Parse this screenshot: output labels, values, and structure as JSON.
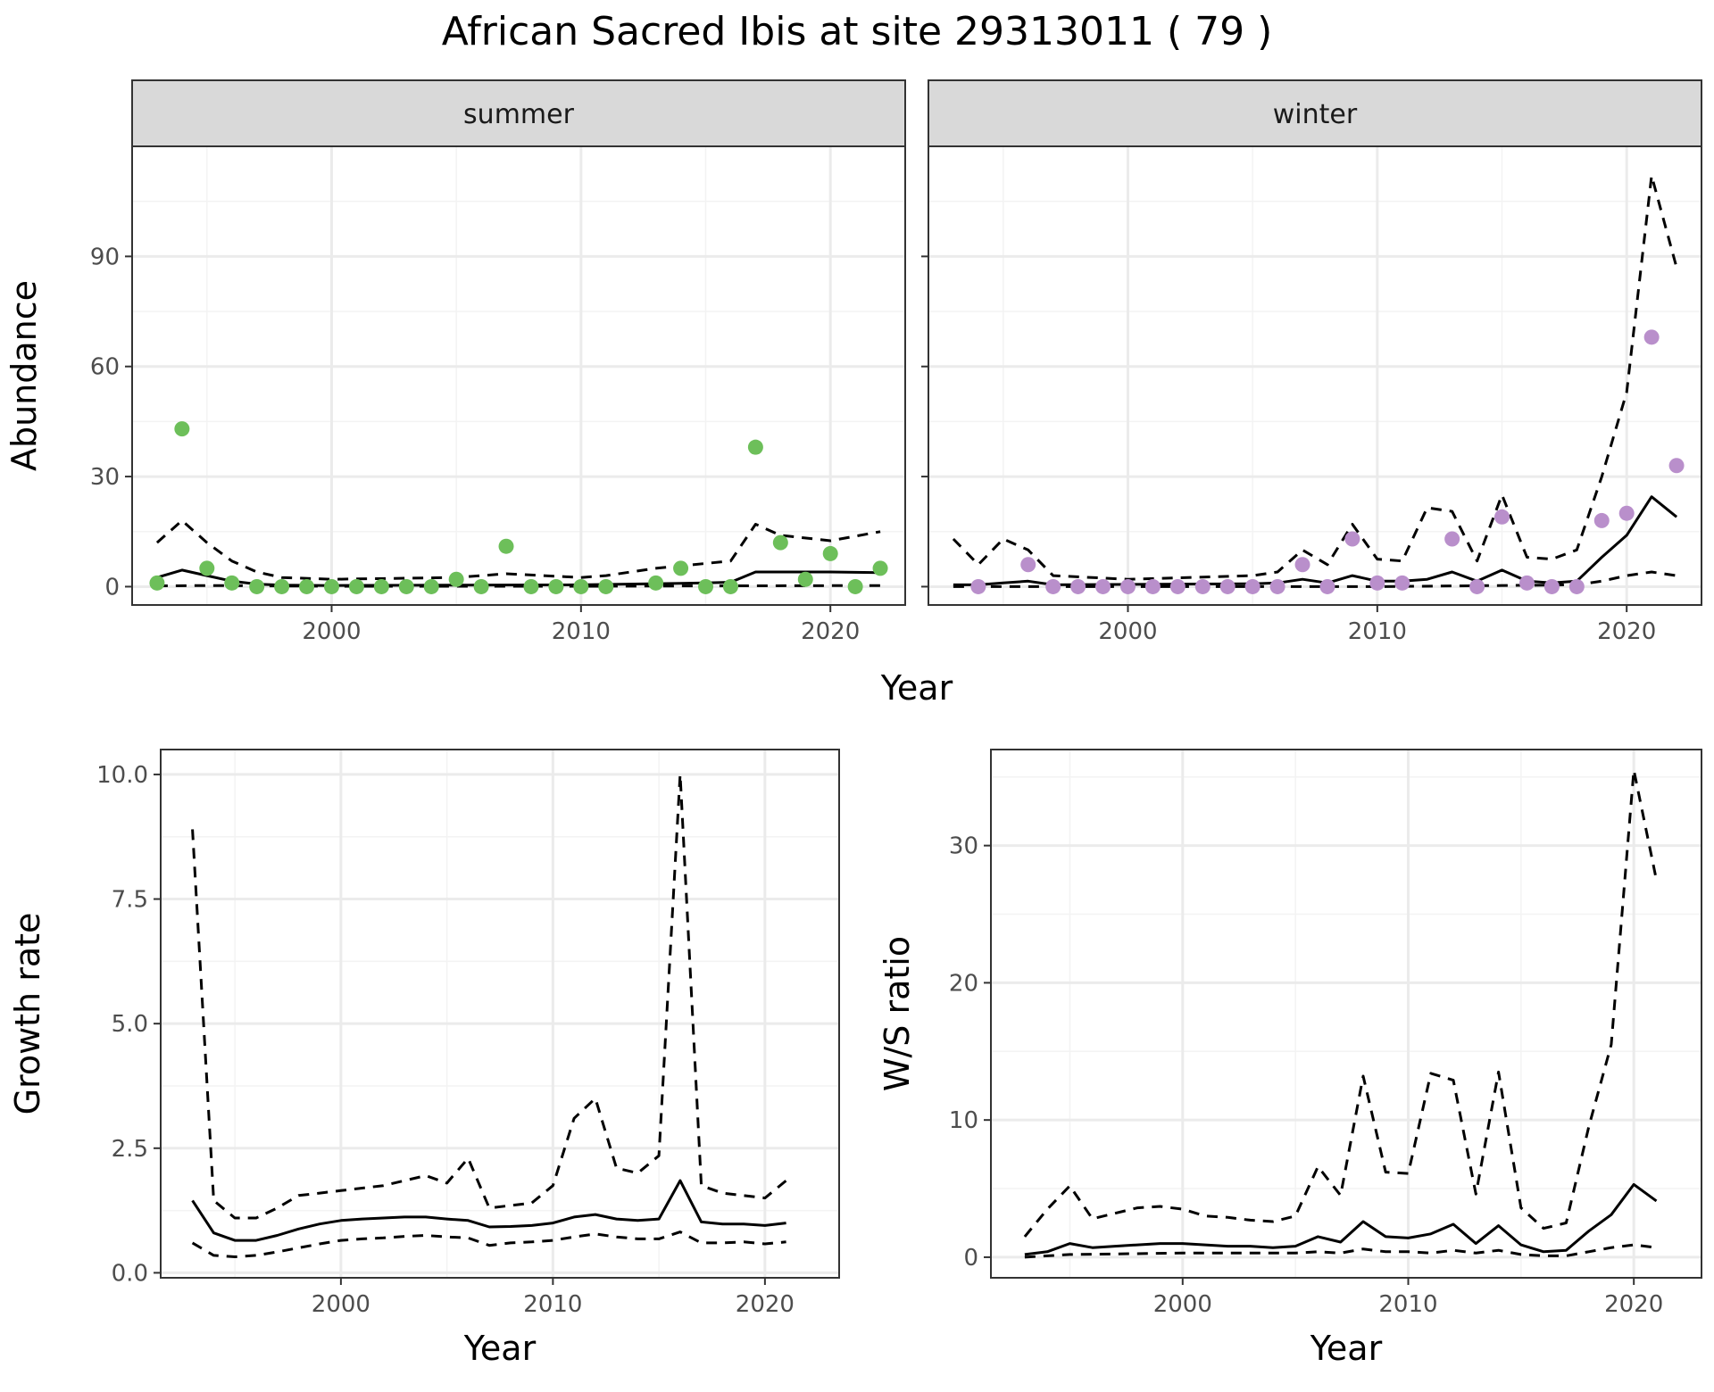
{
  "title": "African Sacred Ibis at site 29313011 ( 79 )",
  "colors": {
    "summer_points": "#6dbf5a",
    "winter_points": "#b98fcb",
    "lines": "#000000",
    "strip_fill": "#d9d9d9",
    "grid": "#ebebeb"
  },
  "chart_data": [
    {
      "type": "scatter",
      "id": "abundance-summer",
      "facet": "summer",
      "xlabel": "Year",
      "ylabel": "Abundance",
      "xlim": [
        1992,
        2023
      ],
      "ylim": [
        -5,
        120
      ],
      "xticks": [
        2000,
        2010,
        2020
      ],
      "yticks": [
        0,
        30,
        60,
        90
      ],
      "points": {
        "x": [
          1993,
          1994,
          1995,
          1996,
          1997,
          1998,
          1999,
          2000,
          2001,
          2002,
          2003,
          2004,
          2005,
          2006,
          2007,
          2008,
          2009,
          2010,
          2011,
          2013,
          2014,
          2015,
          2016,
          2017,
          2018,
          2019,
          2020,
          2021,
          2022
        ],
        "y": [
          1,
          43,
          5,
          1,
          0,
          0,
          0,
          0,
          0,
          0,
          0,
          0,
          2,
          0,
          11,
          0,
          0,
          0,
          0,
          1,
          5,
          0,
          0,
          38,
          12,
          2,
          9,
          0,
          5
        ]
      },
      "series": [
        {
          "name": "median",
          "style": "solid",
          "x": [
            1993,
            1994,
            1995,
            1996,
            1997,
            1998,
            2000,
            2005,
            2010,
            2015,
            2016,
            2017,
            2018,
            2020,
            2022
          ],
          "y": [
            2.5,
            4.5,
            3,
            1.5,
            0.7,
            0.4,
            0.3,
            0.4,
            0.5,
            1,
            1.2,
            4,
            4,
            4,
            3.8
          ]
        },
        {
          "name": "upper",
          "style": "dashed",
          "x": [
            1993,
            1994,
            1995,
            1996,
            1997,
            1998,
            2000,
            2005,
            2007,
            2010,
            2011,
            2013,
            2016,
            2017,
            2018,
            2020,
            2022
          ],
          "y": [
            12,
            18,
            12,
            7,
            4,
            2.5,
            2,
            2.5,
            3.5,
            2.5,
            3,
            5,
            7,
            17,
            14,
            12.5,
            15
          ]
        },
        {
          "name": "lower",
          "style": "dashed",
          "x": [
            1993,
            1995,
            2000,
            2010,
            2015,
            2022
          ],
          "y": [
            0.2,
            0.3,
            0.1,
            0.1,
            0.2,
            0.3
          ]
        }
      ]
    },
    {
      "type": "scatter",
      "id": "abundance-winter",
      "facet": "winter",
      "xlabel": "Year",
      "ylabel": "Abundance",
      "xlim": [
        1992,
        2023
      ],
      "ylim": [
        -5,
        120
      ],
      "xticks": [
        2000,
        2010,
        2020
      ],
      "yticks": [
        0,
        30,
        60,
        90
      ],
      "points": {
        "x": [
          1994,
          1996,
          1997,
          1998,
          1999,
          2000,
          2001,
          2002,
          2003,
          2004,
          2005,
          2006,
          2007,
          2008,
          2009,
          2010,
          2011,
          2013,
          2014,
          2015,
          2016,
          2017,
          2018,
          2019,
          2020,
          2021,
          2022
        ],
        "y": [
          0,
          6,
          0,
          0,
          0,
          0,
          0,
          0,
          0,
          0,
          0,
          0,
          6,
          0,
          13,
          1,
          1,
          13,
          0,
          19,
          1,
          0,
          0,
          18,
          20,
          68,
          33
        ]
      },
      "series": [
        {
          "name": "median",
          "style": "solid",
          "x": [
            1993,
            1994,
            1995,
            1996,
            1997,
            2005,
            2006,
            2007,
            2008,
            2009,
            2010,
            2011,
            2012,
            2013,
            2014,
            2015,
            2016,
            2017,
            2018,
            2019,
            2020,
            2021,
            2022
          ],
          "y": [
            0.5,
            0.5,
            1,
            1.5,
            0.5,
            0.8,
            1,
            2,
            1,
            3,
            1.5,
            1.5,
            2,
            4,
            1.5,
            4.5,
            1.5,
            1,
            1.5,
            8,
            14,
            24.5,
            19
          ]
        },
        {
          "name": "upper",
          "style": "dashed",
          "x": [
            1993,
            1994,
            1995,
            1996,
            1997,
            2000,
            2005,
            2006,
            2007,
            2008,
            2009,
            2010,
            2011,
            2012,
            2013,
            2014,
            2015,
            2016,
            2017,
            2018,
            2019,
            2020,
            2021,
            2022
          ],
          "y": [
            13,
            6,
            13,
            10,
            3,
            2,
            3,
            4,
            10,
            6,
            17,
            7.5,
            7,
            21.5,
            20.5,
            7,
            25,
            8,
            7.5,
            10,
            30,
            53,
            112,
            87
          ]
        },
        {
          "name": "lower",
          "style": "dashed",
          "x": [
            1993,
            2000,
            2010,
            2018,
            2019,
            2020,
            2021,
            2022
          ],
          "y": [
            0,
            0,
            0,
            0.5,
            1.5,
            3,
            4,
            3
          ]
        }
      ]
    },
    {
      "type": "line",
      "id": "growth-rate",
      "xlabel": "Year",
      "ylabel": "Growth rate",
      "xlim": [
        1991.5,
        2023.5
      ],
      "ylim": [
        -0.1,
        10.5
      ],
      "xticks": [
        2000,
        2010,
        2020
      ],
      "yticks": [
        0.0,
        2.5,
        5.0,
        7.5,
        10.0
      ],
      "ytick_labels": [
        "0.0",
        "2.5",
        "5.0",
        "7.5",
        "10.0"
      ],
      "series": [
        {
          "name": "median",
          "style": "solid",
          "x": [
            1993,
            1994,
            1995,
            1996,
            1997,
            1998,
            1999,
            2000,
            2001,
            2002,
            2003,
            2004,
            2005,
            2006,
            2007,
            2008,
            2009,
            2010,
            2011,
            2012,
            2013,
            2014,
            2015,
            2016,
            2017,
            2018,
            2019,
            2020,
            2021
          ],
          "y": [
            1.45,
            0.8,
            0.65,
            0.65,
            0.75,
            0.88,
            0.98,
            1.05,
            1.08,
            1.1,
            1.12,
            1.12,
            1.08,
            1.05,
            0.92,
            0.93,
            0.95,
            1.0,
            1.12,
            1.17,
            1.08,
            1.05,
            1.08,
            1.85,
            1.02,
            0.98,
            0.98,
            0.95,
            1.0
          ]
        },
        {
          "name": "upper",
          "style": "dashed",
          "x": [
            1993,
            1994,
            1995,
            1996,
            1997,
            1998,
            1999,
            2000,
            2001,
            2002,
            2003,
            2004,
            2005,
            2006,
            2007,
            2008,
            2009,
            2010,
            2011,
            2012,
            2013,
            2014,
            2015,
            2016,
            2017,
            2018,
            2019,
            2020,
            2021
          ],
          "y": [
            8.9,
            1.45,
            1.1,
            1.1,
            1.3,
            1.55,
            1.6,
            1.65,
            1.7,
            1.75,
            1.85,
            1.95,
            1.8,
            2.3,
            1.3,
            1.35,
            1.4,
            1.75,
            3.1,
            3.5,
            2.1,
            2.0,
            2.35,
            10.0,
            1.75,
            1.6,
            1.55,
            1.5,
            1.85
          ]
        },
        {
          "name": "lower",
          "style": "dashed",
          "x": [
            1993,
            1994,
            1995,
            1996,
            1997,
            1998,
            1999,
            2000,
            2001,
            2002,
            2003,
            2004,
            2005,
            2006,
            2007,
            2008,
            2009,
            2010,
            2011,
            2012,
            2013,
            2014,
            2015,
            2016,
            2017,
            2018,
            2019,
            2020,
            2021
          ],
          "y": [
            0.6,
            0.35,
            0.32,
            0.35,
            0.42,
            0.5,
            0.58,
            0.65,
            0.68,
            0.7,
            0.73,
            0.75,
            0.72,
            0.7,
            0.55,
            0.6,
            0.62,
            0.65,
            0.72,
            0.78,
            0.72,
            0.68,
            0.68,
            0.82,
            0.6,
            0.6,
            0.62,
            0.58,
            0.62
          ]
        }
      ]
    },
    {
      "type": "line",
      "id": "ws-ratio",
      "xlabel": "Year",
      "ylabel": "W/S ratio",
      "xlim": [
        1991.5,
        2023
      ],
      "ylim": [
        -1.5,
        37
      ],
      "xticks": [
        2000,
        2010,
        2020
      ],
      "yticks": [
        0,
        10,
        20,
        30
      ],
      "series": [
        {
          "name": "median",
          "style": "solid",
          "x": [
            1993,
            1994,
            1995,
            1996,
            1997,
            1998,
            1999,
            2000,
            2001,
            2002,
            2003,
            2004,
            2005,
            2006,
            2007,
            2008,
            2009,
            2010,
            2011,
            2012,
            2013,
            2014,
            2015,
            2016,
            2017,
            2018,
            2019,
            2020,
            2021
          ],
          "y": [
            0.2,
            0.4,
            1.0,
            0.7,
            0.8,
            0.9,
            1.0,
            1.0,
            0.9,
            0.8,
            0.8,
            0.7,
            0.8,
            1.5,
            1.1,
            2.6,
            1.5,
            1.4,
            1.7,
            2.4,
            1.0,
            2.3,
            0.9,
            0.4,
            0.5,
            1.9,
            3.1,
            5.3,
            4.1
          ]
        },
        {
          "name": "upper",
          "style": "dashed",
          "x": [
            1993,
            1994,
            1995,
            1996,
            1997,
            1998,
            1999,
            2000,
            2001,
            2002,
            2003,
            2004,
            2005,
            2006,
            2007,
            2008,
            2009,
            2010,
            2011,
            2012,
            2013,
            2014,
            2015,
            2016,
            2017,
            2018,
            2019,
            2020,
            2021
          ],
          "y": [
            1.5,
            3.5,
            5.2,
            2.8,
            3.2,
            3.6,
            3.7,
            3.5,
            3.0,
            2.9,
            2.7,
            2.6,
            3.0,
            6.6,
            4.5,
            13.2,
            6.2,
            6.1,
            13.4,
            12.9,
            4.6,
            13.5,
            3.6,
            2.1,
            2.5,
            9.5,
            15.5,
            35.5,
            27.5
          ]
        },
        {
          "name": "lower",
          "style": "dashed",
          "x": [
            1993,
            1995,
            2000,
            2005,
            2006,
            2007,
            2008,
            2009,
            2010,
            2011,
            2012,
            2013,
            2014,
            2015,
            2016,
            2017,
            2018,
            2019,
            2020,
            2021
          ],
          "y": [
            0,
            0.2,
            0.3,
            0.3,
            0.4,
            0.3,
            0.6,
            0.4,
            0.4,
            0.3,
            0.5,
            0.3,
            0.5,
            0.2,
            0.1,
            0.1,
            0.4,
            0.7,
            0.9,
            0.7
          ]
        }
      ]
    }
  ]
}
